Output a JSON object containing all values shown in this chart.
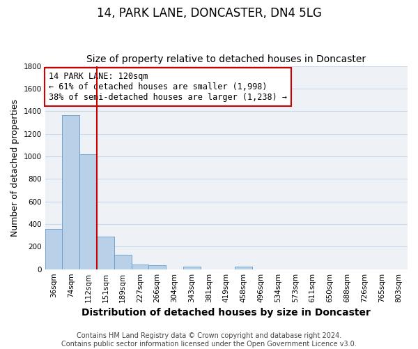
{
  "title": "14, PARK LANE, DONCASTER, DN4 5LG",
  "subtitle": "Size of property relative to detached houses in Doncaster",
  "xlabel": "Distribution of detached houses by size in Doncaster",
  "ylabel": "Number of detached properties",
  "bar_heights": [
    355,
    1365,
    1020,
    290,
    130,
    42,
    35,
    0,
    20,
    0,
    0,
    20,
    0,
    0,
    0,
    0,
    0,
    0,
    0,
    0,
    0
  ],
  "bar_labels": [
    "36sqm",
    "74sqm",
    "112sqm",
    "151sqm",
    "189sqm",
    "227sqm",
    "266sqm",
    "304sqm",
    "343sqm",
    "381sqm",
    "419sqm",
    "458sqm",
    "496sqm",
    "534sqm",
    "573sqm",
    "611sqm",
    "650sqm",
    "688sqm",
    "726sqm",
    "765sqm",
    "803sqm"
  ],
  "bar_color": "#b8d0e8",
  "bar_edge_color": "#6699cc",
  "vline_color": "#cc0000",
  "vline_x": 2.5,
  "annotation_text": "14 PARK LANE: 120sqm\n← 61% of detached houses are smaller (1,998)\n38% of semi-detached houses are larger (1,238) →",
  "annotation_box_color": "white",
  "annotation_box_edge": "#cc0000",
  "ylim": [
    0,
    1800
  ],
  "yticks": [
    0,
    200,
    400,
    600,
    800,
    1000,
    1200,
    1400,
    1600,
    1800
  ],
  "grid_color": "#c8d8e8",
  "bg_color": "#eef2f7",
  "footer": "Contains HM Land Registry data © Crown copyright and database right 2024.\nContains public sector information licensed under the Open Government Licence v3.0.",
  "title_fontsize": 12,
  "subtitle_fontsize": 10,
  "xlabel_fontsize": 10,
  "ylabel_fontsize": 9,
  "tick_fontsize": 7.5,
  "footer_fontsize": 7,
  "annot_fontsize": 8.5
}
